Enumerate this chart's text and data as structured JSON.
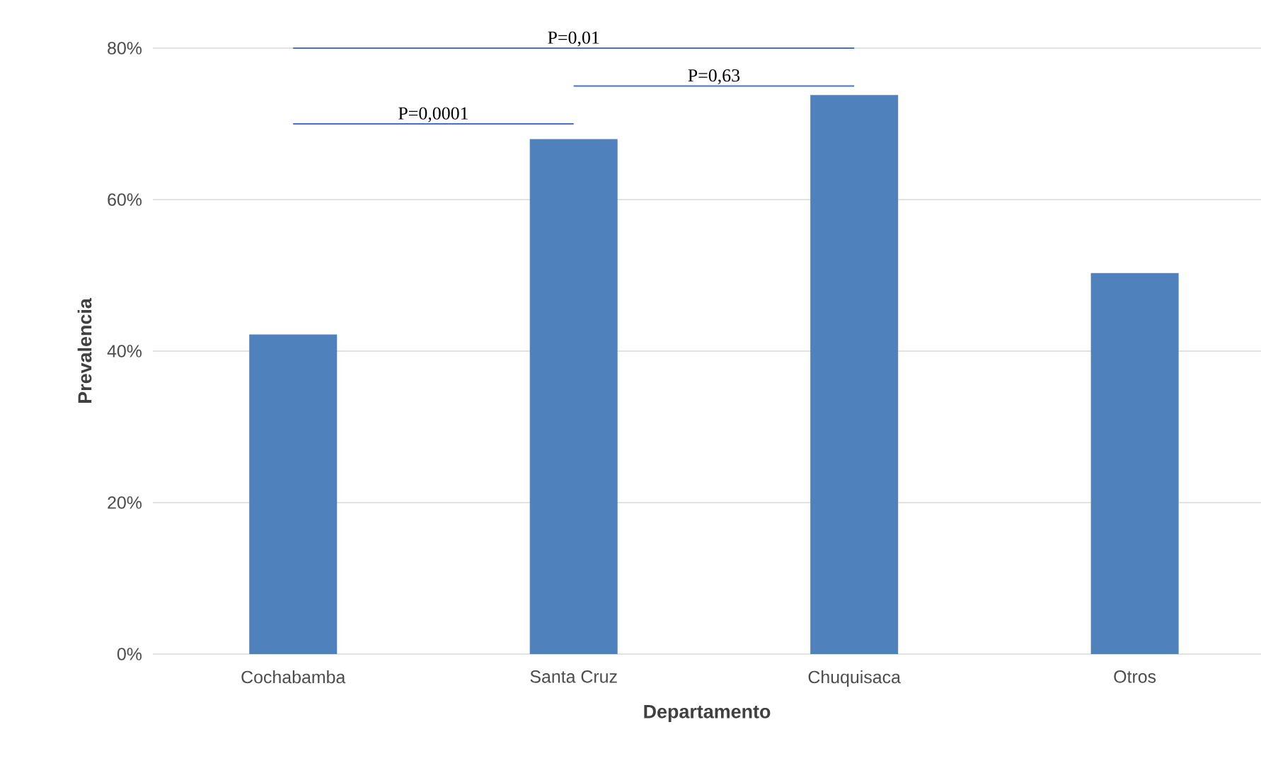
{
  "chart_data": {
    "type": "bar",
    "xlabel": "Departamento",
    "ylabel": "Prevalencia",
    "categories": [
      "Cochabamba",
      "Santa Cruz",
      "Chuquisaca",
      "Otros"
    ],
    "values": [
      42.2,
      68.0,
      73.8,
      50.3
    ],
    "color": "#4f81bd",
    "ylim": [
      0,
      80
    ],
    "yticks": [
      {
        "value": 0,
        "label": "0%"
      },
      {
        "value": 20,
        "label": "20%"
      },
      {
        "value": 40,
        "label": "40%"
      },
      {
        "value": 60,
        "label": "60%"
      },
      {
        "value": 80,
        "label": "80%"
      }
    ],
    "grid": "y",
    "annotations": [
      "P=0,01",
      "P=0,63",
      "P=0,0001"
    ]
  }
}
